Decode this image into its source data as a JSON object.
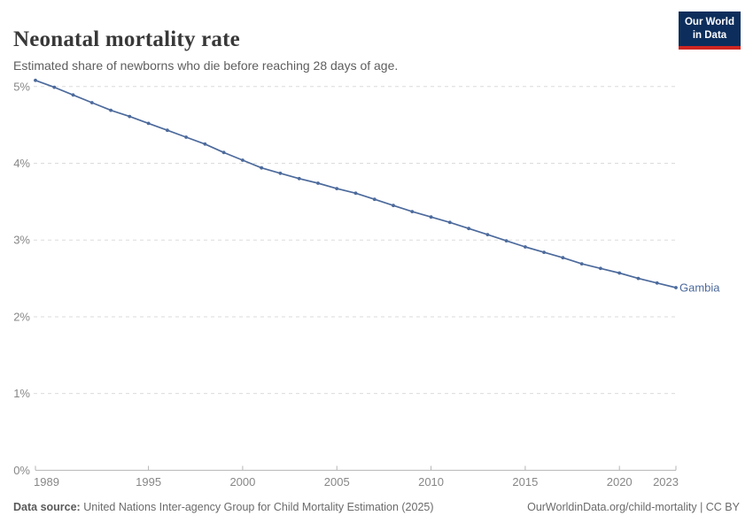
{
  "header": {
    "title": "Neonatal mortality rate",
    "subtitle": "Estimated share of newborns who die before reaching 28 days of age.",
    "logo": {
      "line1": "Our World",
      "line2": "in Data"
    }
  },
  "chart_data": {
    "type": "line",
    "title": "Neonatal mortality rate",
    "xlabel": "",
    "ylabel": "",
    "x": [
      1989,
      1990,
      1991,
      1992,
      1993,
      1994,
      1995,
      1996,
      1997,
      1998,
      1999,
      2000,
      2001,
      2002,
      2003,
      2004,
      2005,
      2006,
      2007,
      2008,
      2009,
      2010,
      2011,
      2012,
      2013,
      2014,
      2015,
      2016,
      2017,
      2018,
      2019,
      2020,
      2021,
      2022,
      2023
    ],
    "series": [
      {
        "name": "Gambia",
        "values": [
          5.08,
          4.99,
          4.89,
          4.79,
          4.69,
          4.61,
          4.52,
          4.43,
          4.34,
          4.25,
          4.14,
          4.04,
          3.94,
          3.87,
          3.8,
          3.74,
          3.67,
          3.61,
          3.53,
          3.45,
          3.37,
          3.3,
          3.23,
          3.15,
          3.07,
          2.99,
          2.91,
          2.84,
          2.77,
          2.69,
          2.63,
          2.57,
          2.5,
          2.44,
          2.38
        ]
      }
    ],
    "x_ticks": [
      1989,
      1995,
      2000,
      2005,
      2010,
      2015,
      2020,
      2023
    ],
    "y_ticks": [
      0,
      1,
      2,
      3,
      4,
      5
    ],
    "y_tick_labels": [
      "0%",
      "1%",
      "2%",
      "3%",
      "4%",
      "5%"
    ],
    "xlim": [
      1989,
      2023
    ],
    "ylim": [
      0,
      5.2
    ],
    "grid": "horizontal-dashed",
    "legend": "end-of-line-label"
  },
  "footer": {
    "source_label": "Data source:",
    "source_text": "United Nations Inter-agency Group for Child Mortality Estimation (2025)",
    "rights": "OurWorldinData.org/child-mortality | CC BY"
  },
  "colors": {
    "line": "#4c6a9c",
    "entity_label": "#4c6a9c",
    "gridline": "#dbdbdb",
    "axis": "#b5b5b5",
    "tick_label": "#878787",
    "logo_bg": "#0d2e5c",
    "logo_red": "#cf2520"
  }
}
